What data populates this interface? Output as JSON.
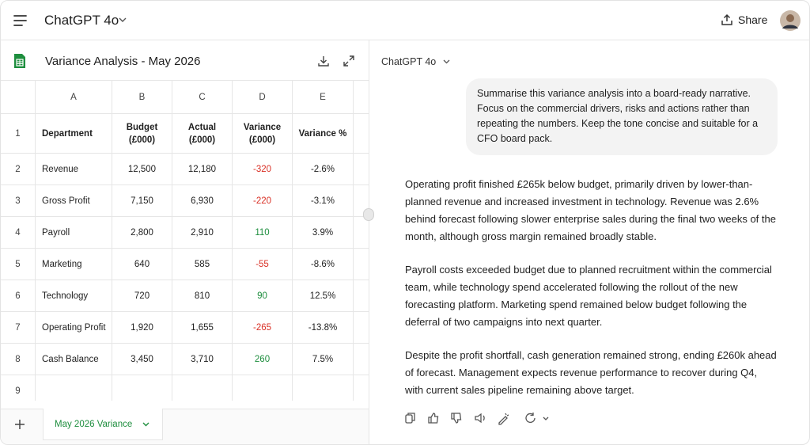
{
  "header": {
    "app_title": "ChatGPT 4o",
    "share": "Share"
  },
  "sheet": {
    "title": "Variance Analysis - May 2026",
    "columns": [
      "A",
      "B",
      "C",
      "D",
      "E"
    ],
    "rows": [
      [
        "1",
        "Department",
        "Budget (£000)",
        "Actual (£000)",
        "Variance (£000)",
        "Variance %"
      ],
      [
        "2",
        "Revenue",
        "12,500",
        "12,180",
        "-320",
        "-2.6%"
      ],
      [
        "3",
        "Gross Profit",
        "7,150",
        "6,930",
        "-220",
        "-3.1%"
      ],
      [
        "4",
        "Payroll",
        "2,800",
        "2,910",
        "110",
        "3.9%"
      ],
      [
        "5",
        "Marketing",
        "640",
        "585",
        "-55",
        "-8.6%"
      ],
      [
        "6",
        "Technology",
        "720",
        "810",
        "90",
        "12.5%"
      ],
      [
        "7",
        "Operating Profit",
        "1,920",
        "1,655",
        "-265",
        "-13.8%"
      ],
      [
        "8",
        "Cash Balance",
        "3,450",
        "3,710",
        "260",
        "7.5%"
      ],
      [
        "9"
      ]
    ],
    "tab": "May 2026 Variance"
  },
  "chat": {
    "model": "ChatGPT 4o",
    "user_message": "Summarise this variance analysis into a board-ready narrative. Focus on the commercial drivers, risks and actions rather than repeating the numbers. Keep the tone concise and suitable for a CFO board pack.",
    "response": [
      "Operating profit finished £265k below budget, primarily driven by lower-than-planned revenue and increased investment in technology. Revenue was 2.6% behind forecast following slower enterprise sales during the final two weeks of the month, although gross margin remained broadly stable.",
      "Payroll costs exceeded budget due to planned recruitment within the commercial team, while technology spend accelerated following the rollout of the new forecasting platform. Marketing spend remained below budget following the deferral of two campaigns into next quarter.",
      "Despite the profit shortfall, cash generation remained strong, ending £260k ahead of forecast. Management expects revenue performance to recover during Q4, with current sales pipeline remaining above target."
    ]
  }
}
